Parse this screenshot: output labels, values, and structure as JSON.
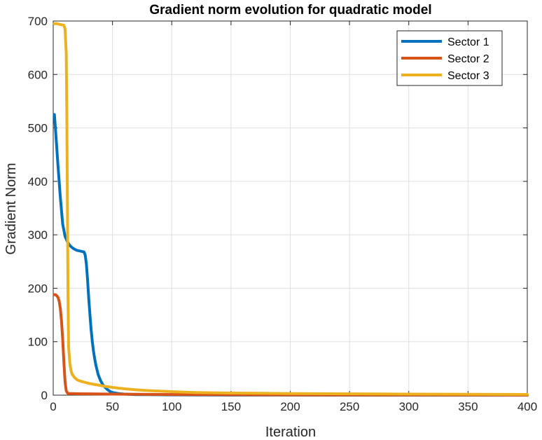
{
  "chart_data": {
    "type": "line",
    "title": "Gradient norm evolution for quadratic model",
    "xlabel": "Iteration",
    "ylabel": "Gradient Norm",
    "xlim": [
      0,
      400
    ],
    "ylim": [
      0,
      700
    ],
    "xticks": [
      0,
      50,
      100,
      150,
      200,
      250,
      300,
      350,
      400
    ],
    "yticks": [
      0,
      100,
      200,
      300,
      400,
      500,
      600,
      700
    ],
    "grid": true,
    "legend_position": "top-right",
    "series": [
      {
        "name": "Sector 1",
        "color": "#0072BD",
        "x": [
          1,
          2,
          4,
          6,
          8,
          10,
          12,
          14,
          16,
          18,
          20,
          22,
          24,
          26,
          27,
          28,
          29,
          30,
          31,
          32,
          33,
          34,
          35,
          36,
          38,
          40,
          42,
          44,
          46,
          48,
          50,
          55,
          60,
          70,
          80,
          100,
          150,
          200,
          300,
          400
        ],
        "y": [
          525,
          495,
          430,
          370,
          320,
          297,
          287,
          280,
          276,
          273,
          271,
          270,
          269,
          268,
          262,
          245,
          215,
          180,
          150,
          122,
          100,
          82,
          68,
          56,
          38,
          27,
          19,
          14,
          10,
          7,
          5,
          3,
          2,
          1,
          1,
          0.5,
          0.2,
          0.1,
          0.05,
          0
        ]
      },
      {
        "name": "Sector 2",
        "color": "#D95319",
        "x": [
          1,
          2,
          3,
          4,
          5,
          6,
          7,
          8,
          9,
          10,
          11,
          12,
          13,
          14,
          16,
          20,
          30,
          50,
          100,
          150,
          200,
          300,
          400
        ],
        "y": [
          188,
          188,
          186,
          183,
          176,
          162,
          138,
          104,
          62,
          25,
          8,
          4,
          3,
          3,
          2.9,
          2.7,
          2.4,
          2,
          1.2,
          0.8,
          0.5,
          0.3,
          0.2
        ]
      },
      {
        "name": "Sector 3",
        "color": "#EDB120",
        "x": [
          1,
          3,
          5,
          7,
          9,
          10,
          11,
          11.5,
          12,
          12.5,
          13,
          14,
          15,
          16,
          18,
          20,
          22,
          25,
          30,
          35,
          40,
          45,
          50,
          60,
          70,
          80,
          100,
          120,
          150,
          200,
          250,
          300,
          350,
          400
        ],
        "y": [
          695,
          695,
          694,
          693,
          692,
          685,
          640,
          520,
          350,
          180,
          90,
          60,
          46,
          39,
          33,
          29,
          27,
          25,
          22,
          20,
          18,
          16,
          14.5,
          12,
          10,
          8.5,
          6.5,
          5,
          4,
          3,
          2.5,
          2,
          1.6,
          1.3
        ]
      }
    ]
  }
}
